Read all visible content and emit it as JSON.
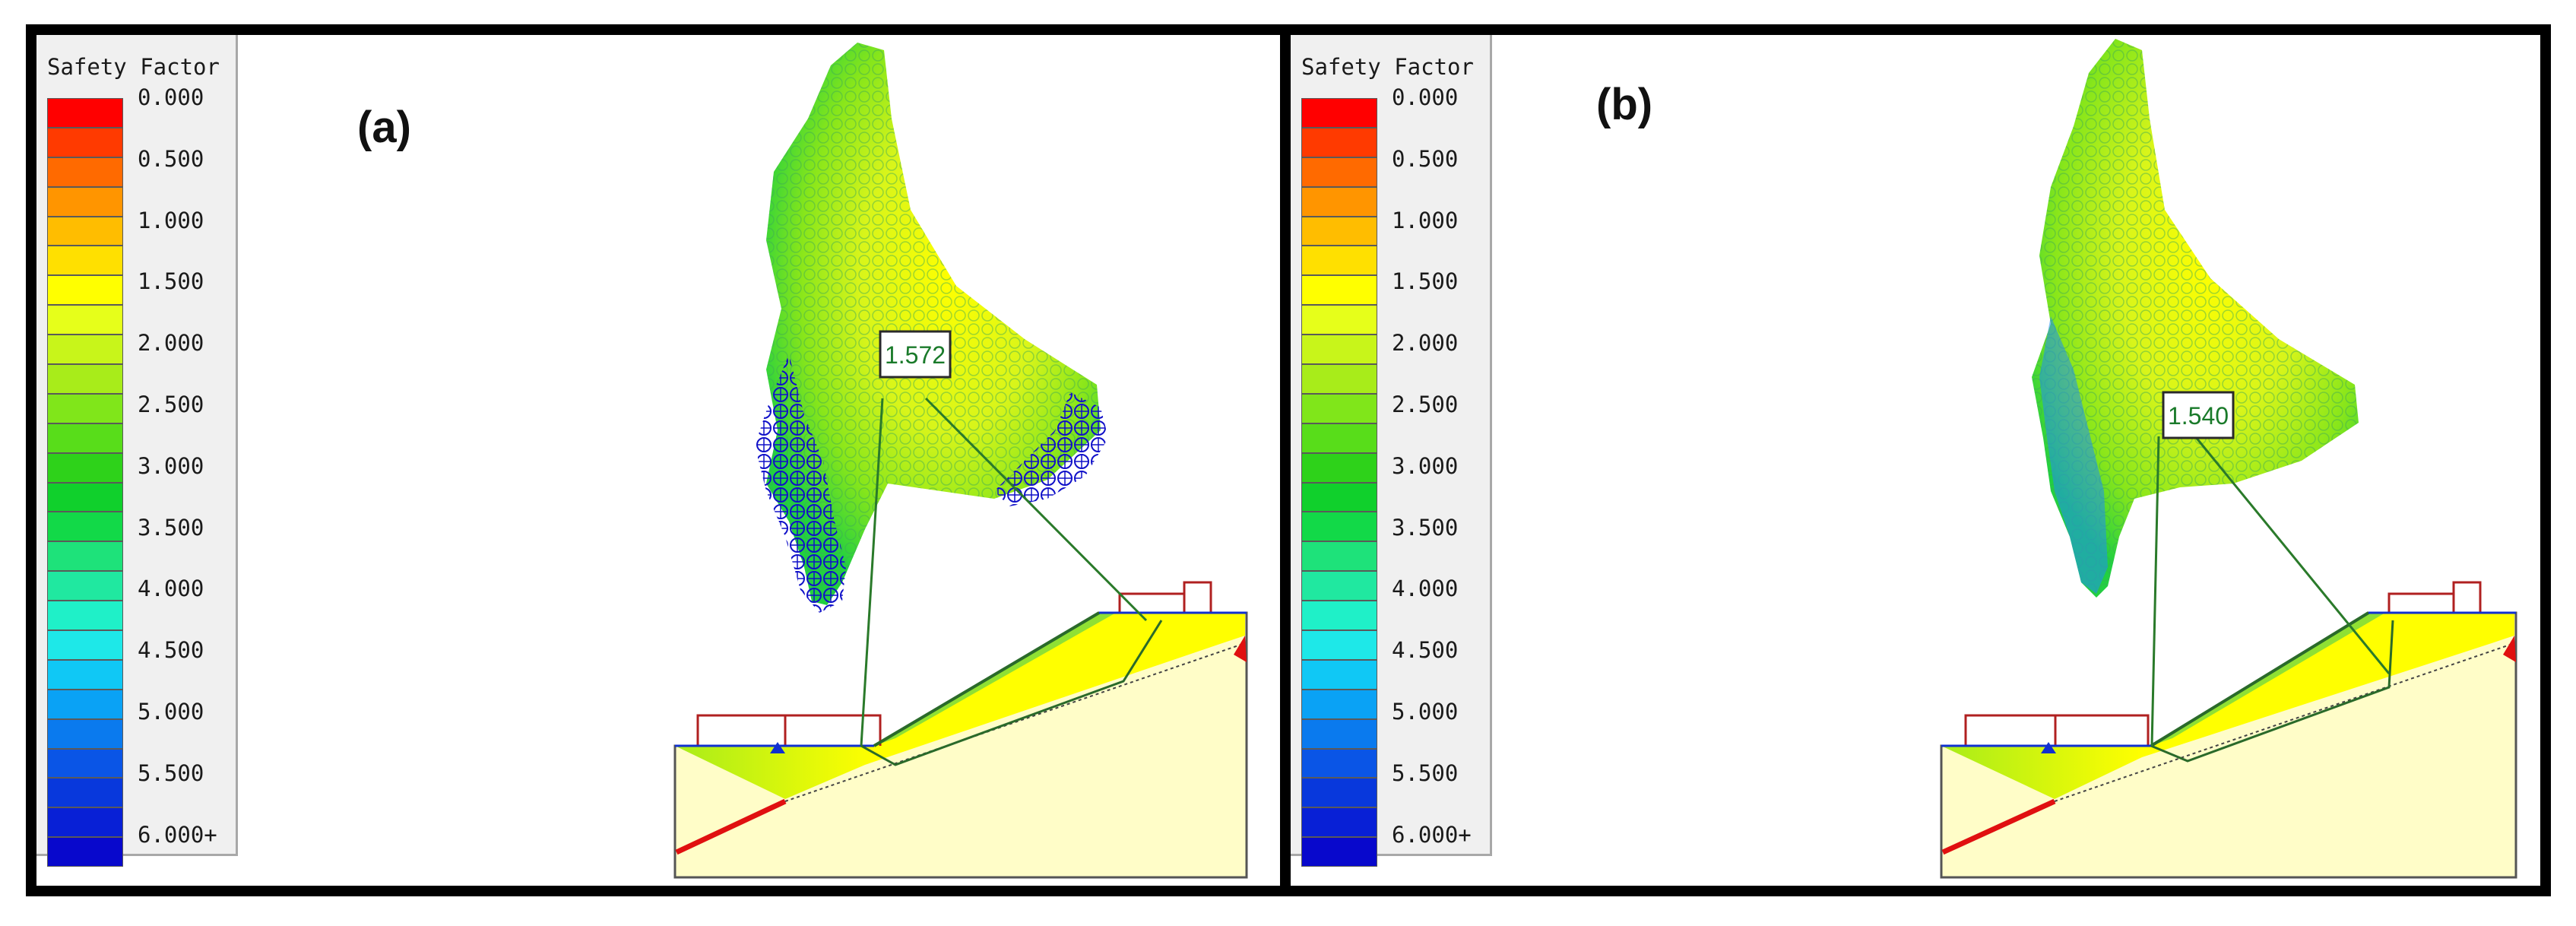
{
  "legend": {
    "title": "Safety Factor",
    "labels": [
      "0.000",
      "0.500",
      "1.000",
      "1.500",
      "2.000",
      "2.500",
      "3.000",
      "3.500",
      "4.000",
      "4.500",
      "5.000",
      "5.500",
      "6.000+"
    ],
    "colors": [
      "#ff0000",
      "#ff3a00",
      "#ff6a00",
      "#ff9500",
      "#ffbd00",
      "#ffe000",
      "#ffff00",
      "#e6ff1a",
      "#c8f51a",
      "#a8ec1a",
      "#80e61a",
      "#58dd1a",
      "#2ed21a",
      "#10d02c",
      "#12d948",
      "#1ee27a",
      "#20e8a0",
      "#1ff0c8",
      "#1ee8e8",
      "#10c8f5",
      "#0aa2f5",
      "#0a7aee",
      "#0a55e6",
      "#0838dc",
      "#0820d6",
      "#0808cc"
    ]
  },
  "panels": [
    {
      "id": "a",
      "label": "(a)",
      "critical_fs": "1.572"
    },
    {
      "id": "b",
      "label": "(b)",
      "critical_fs": "1.540"
    }
  ]
}
